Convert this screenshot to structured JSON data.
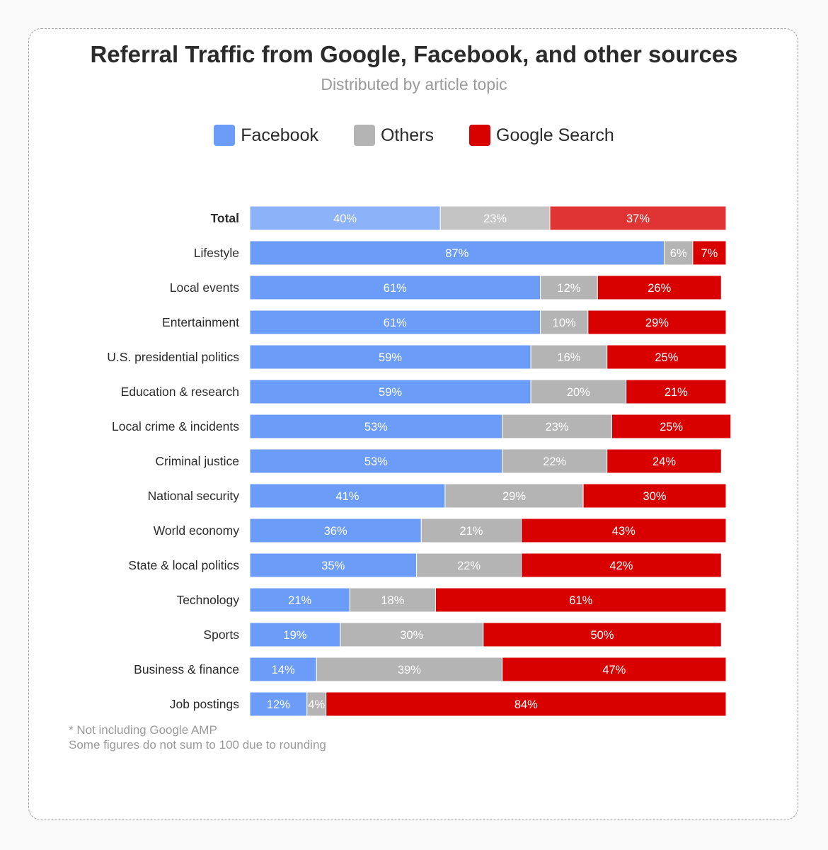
{
  "title": "Referral Traffic from Google, Facebook, and other sources",
  "subtitle": "Distributed by article topic",
  "legend": [
    {
      "name": "Facebook",
      "color": "#6b9cf8"
    },
    {
      "name": "Others",
      "color": "#b4b4b4"
    },
    {
      "name": "Google Search",
      "color": "#d90000"
    }
  ],
  "footnotes": [
    "* Not including Google AMP",
    "Some figures do not sum to 100 due to rounding"
  ],
  "chart_data": {
    "type": "bar",
    "orientation": "horizontal",
    "stacked": true,
    "categories": [
      "Total",
      "Lifestyle",
      "Local events",
      "Entertainment",
      "U.S. presidential politics",
      "Education & research",
      "Local crime & incidents",
      "Criminal justice",
      "National security",
      "World economy",
      "State & local politics",
      "Technology",
      "Sports",
      "Business & finance",
      "Job postings"
    ],
    "series": [
      {
        "name": "Facebook",
        "color": "#6b9cf8",
        "total_color": "#8cb2fa",
        "values": [
          40,
          87,
          61,
          61,
          59,
          59,
          53,
          53,
          41,
          36,
          35,
          21,
          19,
          14,
          12
        ]
      },
      {
        "name": "Others",
        "color": "#b4b4b4",
        "total_color": "#c4c4c4",
        "values": [
          23,
          6,
          12,
          10,
          16,
          20,
          23,
          22,
          29,
          21,
          22,
          18,
          30,
          39,
          4
        ]
      },
      {
        "name": "Google Search",
        "color": "#d90000",
        "total_color": "#e03434",
        "values": [
          37,
          7,
          26,
          29,
          25,
          21,
          25,
          24,
          30,
          43,
          42,
          61,
          50,
          47,
          84
        ]
      }
    ],
    "value_suffix": "%",
    "legend_position": "top-center",
    "grid": false
  }
}
